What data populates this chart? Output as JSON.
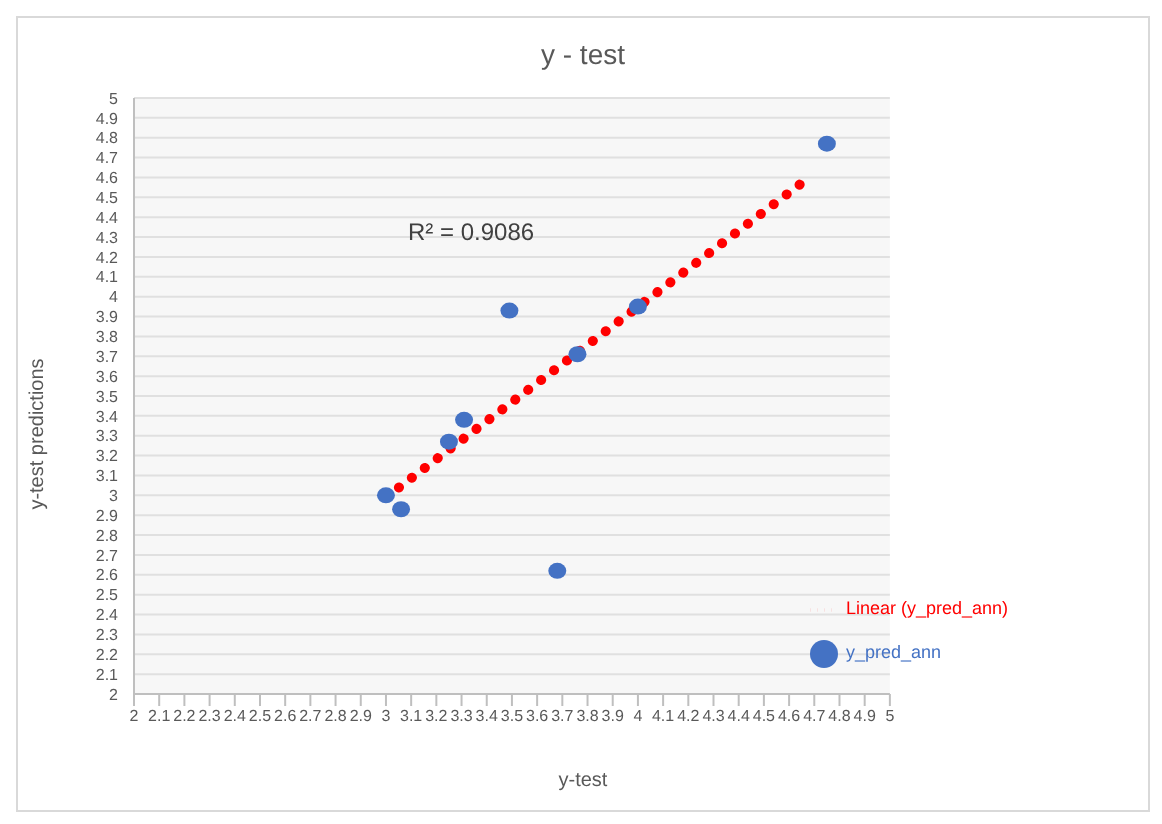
{
  "chart_data": {
    "type": "scatter",
    "title": "y - test",
    "xlabel": "y-test",
    "ylabel": "y-test predictions",
    "annotations": [
      "R² = 0.9086"
    ],
    "series": [
      {
        "name": "y_pred_ann",
        "color": "#4472c4",
        "marker": "circle",
        "x": [
          3.0,
          3.06,
          3.25,
          3.31,
          3.49,
          3.68,
          3.76,
          4.0,
          4.75
        ],
        "values": [
          3.0,
          2.93,
          3.27,
          3.38,
          3.93,
          2.62,
          3.71,
          3.95,
          4.77
        ]
      },
      {
        "name": "Linear (y_pred_ann)",
        "type": "line",
        "color": "#ff0000",
        "line_style": "dotted",
        "marker": "none",
        "x": [
          3.0,
          4.69
        ],
        "values": [
          2.99,
          4.61
        ]
      }
    ],
    "xlim": [
      2,
      5
    ],
    "xticks": [
      2,
      2.1,
      2.2,
      2.3,
      2.4,
      2.5,
      2.6,
      2.7,
      2.8,
      2.9,
      3,
      3.1,
      3.2,
      3.3,
      3.4,
      3.5,
      3.6,
      3.7,
      3.8,
      3.9,
      4,
      4.1,
      4.2,
      4.3,
      4.4,
      4.5,
      4.6,
      4.7,
      4.8,
      4.9,
      5
    ],
    "ylim": [
      2,
      5
    ],
    "yticks": [
      2,
      2.1,
      2.2,
      2.3,
      2.4,
      2.5,
      2.6,
      2.7,
      2.8,
      2.9,
      3,
      3.1,
      3.2,
      3.3,
      3.4,
      3.5,
      3.6,
      3.7,
      3.8,
      3.9,
      4,
      4.1,
      4.2,
      4.3,
      4.4,
      4.5,
      4.6,
      4.7,
      4.8,
      4.9,
      5
    ],
    "grid": "y",
    "legend": "bottom right"
  }
}
